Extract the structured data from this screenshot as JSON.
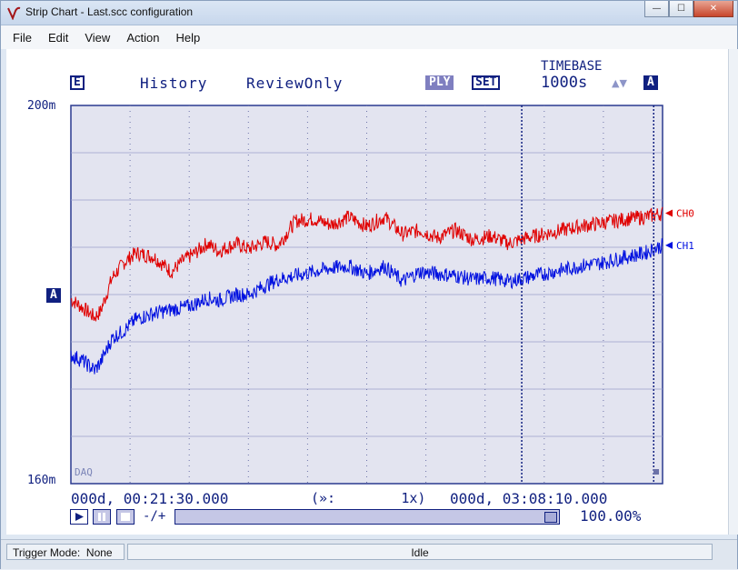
{
  "window": {
    "title": "Strip Chart - Last.scc configuration",
    "buttons": {
      "minimize": "—",
      "maximize": "☐",
      "close": "✕"
    }
  },
  "menu": [
    "File",
    "Edit",
    "View",
    "Action",
    "Help"
  ],
  "toolbar": {
    "e_label": "E",
    "history_label": "History",
    "mode_label": "ReviewOnly",
    "ply_label": "PLY",
    "set_label": "SET",
    "timebase_label": "TIMEBASE",
    "timebase_value": "1000s",
    "timebase_arrows": "▲▼",
    "a_label": "A"
  },
  "chart_data": {
    "type": "line",
    "ylim": [
      160,
      200
    ],
    "yunit": "m",
    "ytick_top": "200m",
    "ytick_bottom": "160m",
    "axis_marker": "A",
    "corner_label": "DAQ",
    "grid": true,
    "x_start_label": "000d, 00:21:30.000",
    "x_mid_label": "(»:        1x)",
    "x_end_label": "000d, 03:08:10.000",
    "series": [
      {
        "name": "CH0",
        "color": "#e00000",
        "x": [
          0,
          2,
          4,
          5,
          7,
          9,
          11,
          14,
          17,
          19,
          21,
          23,
          25,
          28,
          30,
          33,
          35,
          38,
          41,
          44,
          47,
          50,
          53,
          56,
          59,
          62,
          65,
          68,
          71,
          74,
          77,
          80,
          83,
          86,
          90,
          94,
          97,
          100
        ],
        "values": [
          179.5,
          178.6,
          177.6,
          178.2,
          181.8,
          183.4,
          184.4,
          184.0,
          182.4,
          183.6,
          184.4,
          185.4,
          184.6,
          185.4,
          184.8,
          185.6,
          185.2,
          187.8,
          188.0,
          187.4,
          188.2,
          187.2,
          188.2,
          186.4,
          186.8,
          186.0,
          186.8,
          185.8,
          186.2,
          185.4,
          186.0,
          186.4,
          186.8,
          187.2,
          187.6,
          188.0,
          188.2,
          188.6
        ]
      },
      {
        "name": "CH1",
        "color": "#0010e0",
        "x": [
          0,
          2,
          4,
          5,
          7,
          9,
          11,
          14,
          17,
          19,
          21,
          23,
          25,
          28,
          30,
          33,
          35,
          38,
          41,
          44,
          47,
          50,
          53,
          56,
          59,
          62,
          65,
          68,
          71,
          74,
          77,
          80,
          83,
          86,
          90,
          94,
          97,
          100
        ],
        "values": [
          173.6,
          173.0,
          172.0,
          172.8,
          175.4,
          176.2,
          177.4,
          178.0,
          178.4,
          178.6,
          179.0,
          179.6,
          179.4,
          180.0,
          180.0,
          181.0,
          181.6,
          182.0,
          182.4,
          182.8,
          183.0,
          182.2,
          183.0,
          181.4,
          182.4,
          182.2,
          182.0,
          181.6,
          181.8,
          181.4,
          181.8,
          182.2,
          182.6,
          183.0,
          183.4,
          184.0,
          184.4,
          185.2
        ]
      }
    ]
  },
  "playback": {
    "play_icon": "play-icon",
    "pause_icon": "pause-icon",
    "stop_icon": "stop-icon",
    "zoom_label": "-/+",
    "percent": "100.00%",
    "position": 1.0
  },
  "status": {
    "trigger_mode": "Trigger Mode:  None",
    "state": "Idle"
  }
}
